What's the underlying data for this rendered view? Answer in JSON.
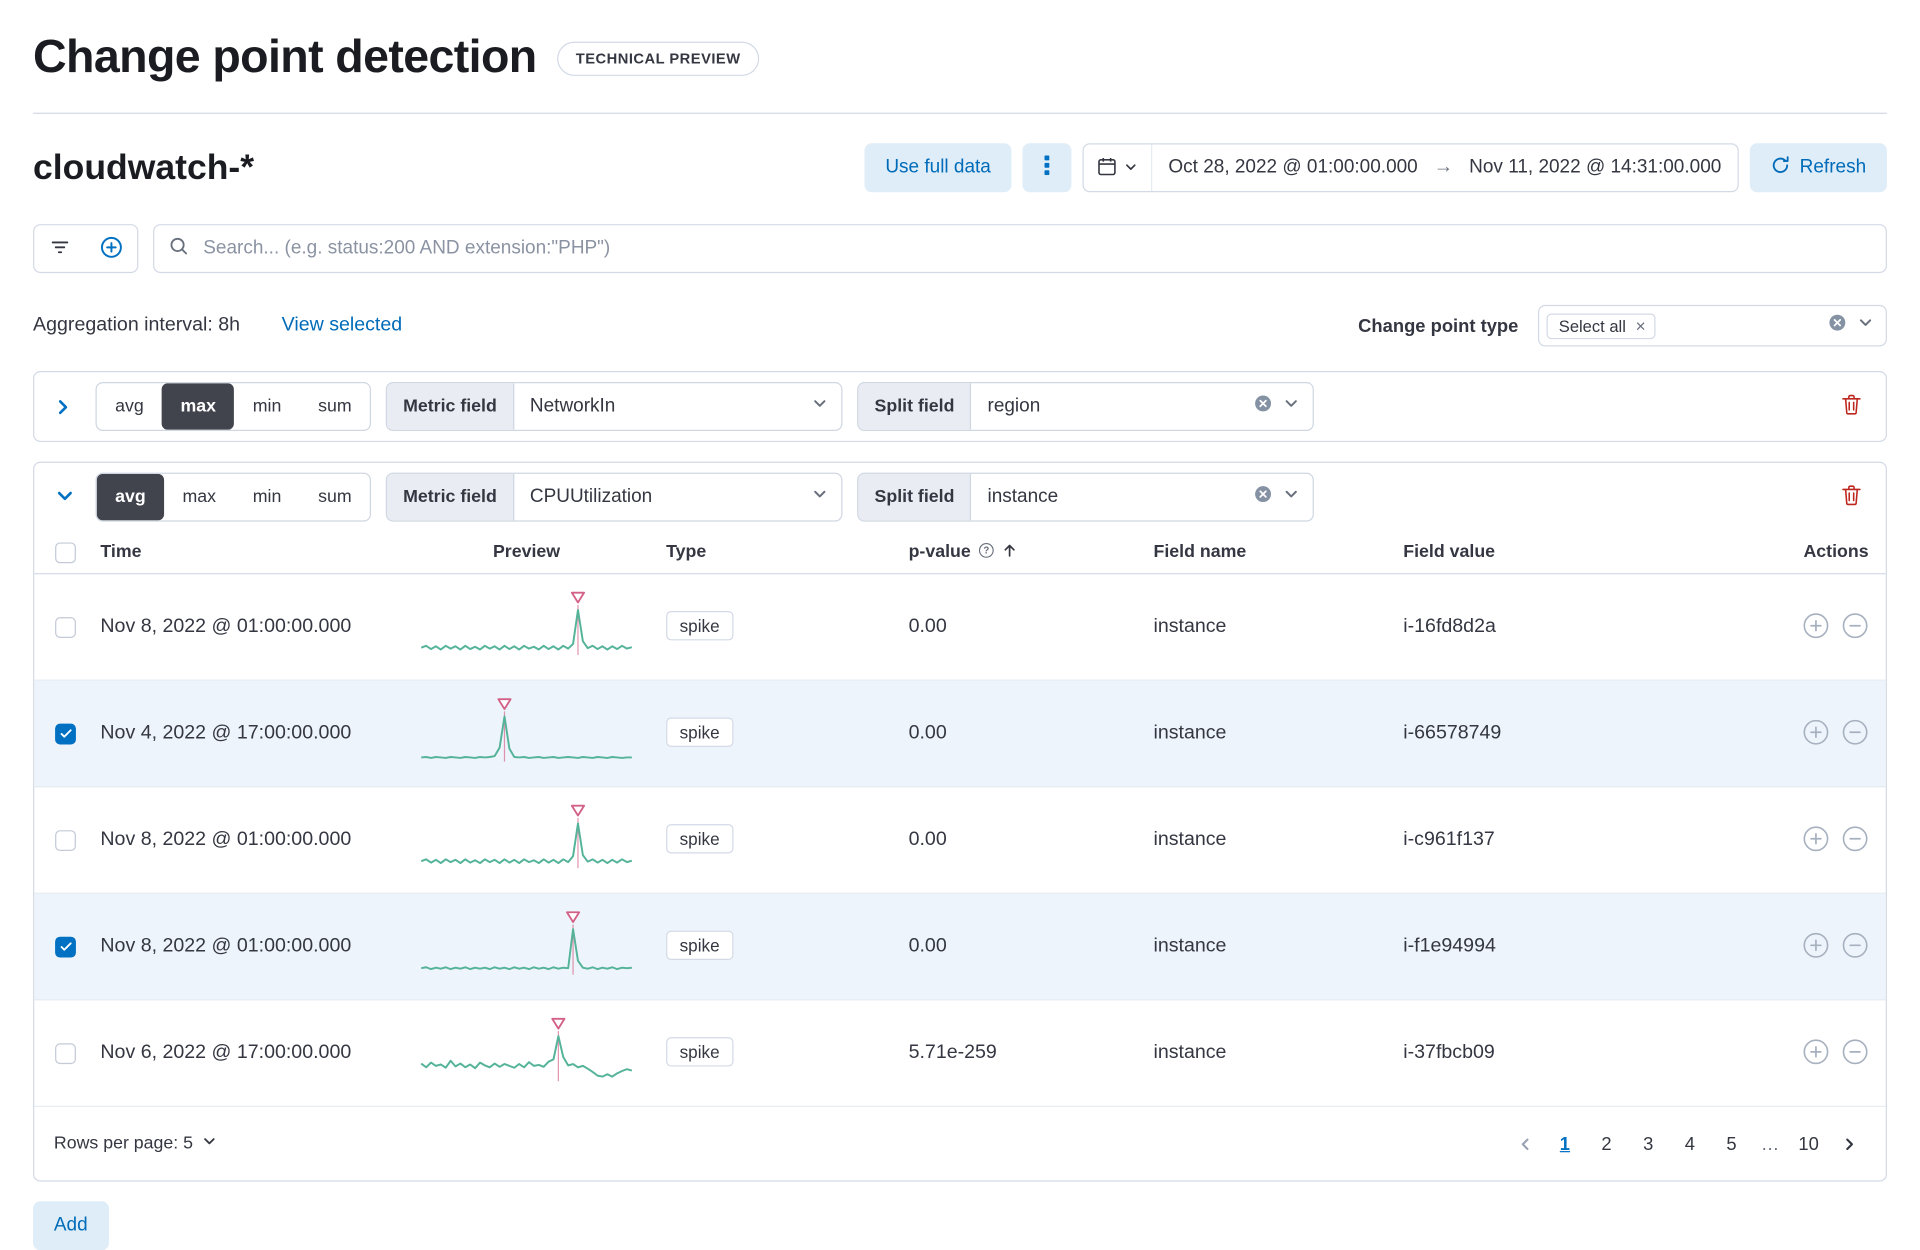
{
  "page": {
    "title": "Change point detection",
    "badge": "TECHNICAL PREVIEW"
  },
  "toolbar": {
    "data_view": "cloudwatch-*",
    "use_full_data_label": "Use full data",
    "date_start": "Oct 28, 2022 @ 01:00:00.000",
    "date_arrow": "→",
    "date_end": "Nov 11, 2022 @ 14:31:00.000",
    "refresh_label": "Refresh"
  },
  "search": {
    "placeholder": "Search... (e.g. status:200 AND extension:\"PHP\")"
  },
  "controls": {
    "aggregation_interval_label": "Aggregation interval: 8h",
    "view_selected_label": "View selected",
    "change_point_type_label": "Change point type",
    "selected_type_pill": "Select all"
  },
  "configs": [
    {
      "fn_options": [
        "avg",
        "max",
        "min",
        "sum"
      ],
      "fn_selected": "max",
      "metric_field_label": "Metric field",
      "metric_field_value": "NetworkIn",
      "split_field_label": "Split field",
      "split_field_value": "region"
    },
    {
      "fn_options": [
        "avg",
        "max",
        "min",
        "sum"
      ],
      "fn_selected": "avg",
      "metric_field_label": "Metric field",
      "metric_field_value": "CPUUtilization",
      "split_field_label": "Split field",
      "split_field_value": "instance"
    }
  ],
  "table": {
    "columns": {
      "time": "Time",
      "preview": "Preview",
      "type": "Type",
      "p_value": "p-value",
      "field_name": "Field name",
      "field_value": "Field value",
      "actions": "Actions"
    },
    "rows": [
      {
        "checked": false,
        "time": "Nov 8, 2022 @ 01:00:00.000",
        "type": "spike",
        "p_value": "0.00",
        "field_name": "instance",
        "field_value": "i-16fd8d2a",
        "spark": {
          "values": [
            0.16,
            0.2,
            0.13,
            0.19,
            0.12,
            0.2,
            0.14,
            0.19,
            0.12,
            0.2,
            0.13,
            0.18,
            0.12,
            0.2,
            0.14,
            0.19,
            0.12,
            0.2,
            0.13,
            0.19,
            0.12,
            0.2,
            0.14,
            0.18,
            0.12,
            0.2,
            0.13,
            0.19,
            0.12,
            0.2,
            0.14,
            0.24,
            0.97,
            0.3,
            0.15,
            0.2,
            0.13,
            0.19,
            0.12,
            0.19,
            0.13,
            0.2,
            0.14,
            0.17
          ],
          "spike_index": 32
        }
      },
      {
        "checked": true,
        "time": "Nov 4, 2022 @ 17:00:00.000",
        "type": "spike",
        "p_value": "0.00",
        "field_name": "instance",
        "field_value": "i-66578749",
        "spark": {
          "values": [
            0.09,
            0.1,
            0.08,
            0.1,
            0.09,
            0.08,
            0.1,
            0.09,
            0.08,
            0.1,
            0.09,
            0.08,
            0.1,
            0.09,
            0.1,
            0.12,
            0.3,
            0.97,
            0.28,
            0.1,
            0.09,
            0.1,
            0.08,
            0.09,
            0.1,
            0.08,
            0.09,
            0.1,
            0.08,
            0.09,
            0.1,
            0.09,
            0.08,
            0.1,
            0.09,
            0.08,
            0.1,
            0.09,
            0.08,
            0.1,
            0.09,
            0.08,
            0.09,
            0.09
          ],
          "spike_index": 17
        }
      },
      {
        "checked": false,
        "time": "Nov 8, 2022 @ 01:00:00.000",
        "type": "spike",
        "p_value": "0.00",
        "field_name": "instance",
        "field_value": "i-c961f137",
        "spark": {
          "values": [
            0.15,
            0.19,
            0.12,
            0.18,
            0.11,
            0.19,
            0.13,
            0.18,
            0.11,
            0.19,
            0.12,
            0.17,
            0.11,
            0.19,
            0.13,
            0.18,
            0.11,
            0.19,
            0.12,
            0.18,
            0.11,
            0.19,
            0.13,
            0.17,
            0.11,
            0.19,
            0.12,
            0.18,
            0.11,
            0.19,
            0.13,
            0.26,
            0.96,
            0.28,
            0.14,
            0.19,
            0.12,
            0.18,
            0.11,
            0.18,
            0.12,
            0.19,
            0.13,
            0.16
          ],
          "spike_index": 32
        }
      },
      {
        "checked": true,
        "time": "Nov 8, 2022 @ 01:00:00.000",
        "type": "spike",
        "p_value": "0.00",
        "field_name": "instance",
        "field_value": "i-f1e94994",
        "spark": {
          "values": [
            0.14,
            0.16,
            0.12,
            0.15,
            0.13,
            0.16,
            0.12,
            0.15,
            0.13,
            0.16,
            0.12,
            0.15,
            0.13,
            0.15,
            0.12,
            0.16,
            0.13,
            0.15,
            0.12,
            0.16,
            0.13,
            0.15,
            0.12,
            0.16,
            0.13,
            0.15,
            0.12,
            0.16,
            0.13,
            0.15,
            0.14,
            0.98,
            0.3,
            0.15,
            0.13,
            0.16,
            0.12,
            0.15,
            0.13,
            0.16,
            0.12,
            0.15,
            0.14,
            0.15
          ],
          "spike_index": 31
        }
      },
      {
        "checked": false,
        "time": "Nov 6, 2022 @ 17:00:00.000",
        "type": "spike",
        "p_value": "5.71e-259",
        "field_name": "instance",
        "field_value": "i-37fbcb09",
        "spark": {
          "values": [
            0.38,
            0.3,
            0.4,
            0.33,
            0.36,
            0.29,
            0.44,
            0.32,
            0.38,
            0.3,
            0.36,
            0.28,
            0.4,
            0.34,
            0.3,
            0.38,
            0.31,
            0.37,
            0.33,
            0.29,
            0.37,
            0.3,
            0.41,
            0.33,
            0.35,
            0.31,
            0.42,
            0.47,
            0.97,
            0.52,
            0.34,
            0.37,
            0.3,
            0.33,
            0.27,
            0.2,
            0.12,
            0.1,
            0.15,
            0.1,
            0.17,
            0.22,
            0.26,
            0.23
          ],
          "spike_index": 28
        }
      }
    ],
    "rows_per_page_label": "Rows per page: 5",
    "pagination": {
      "pages": [
        "1",
        "2",
        "3",
        "4",
        "5",
        "…",
        "10"
      ],
      "active_page": "1"
    }
  },
  "add_button_label": "Add",
  "colors": {
    "accent": "#0071c2",
    "link": "#006bb8",
    "danger": "#bd271e",
    "sparkline_line": "#54b399",
    "sparkline_marker": "#d36086",
    "selected_row_bg": "#eef4fb"
  }
}
